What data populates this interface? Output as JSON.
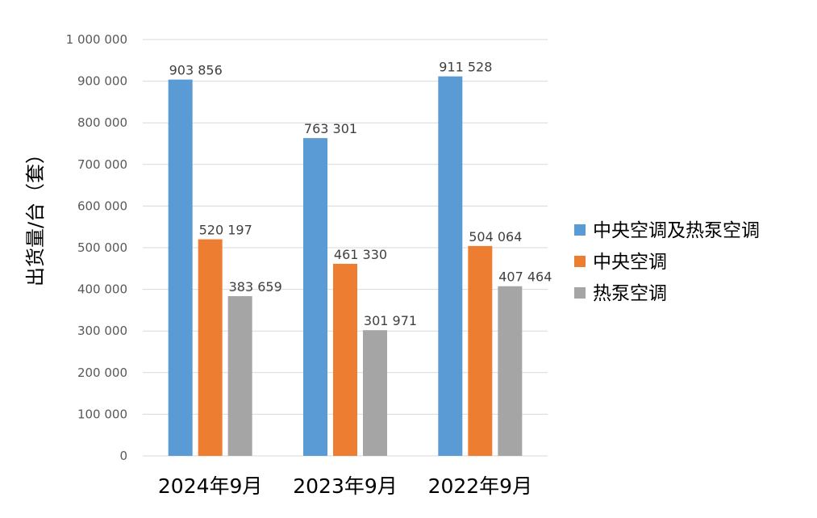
{
  "chart_data": {
    "type": "bar",
    "title": "",
    "xlabel": "",
    "ylabel": "出货量/台（套）",
    "categories": [
      "2024年9月",
      "2023年9月",
      "2022年9月"
    ],
    "series": [
      {
        "name": "中央空调及热泵空调",
        "color": "#5b9bd5",
        "values": [
          903856,
          763301,
          911528
        ]
      },
      {
        "name": "中央空调",
        "color": "#ed7d31",
        "values": [
          520197,
          461330,
          504064
        ]
      },
      {
        "name": "热泵空调",
        "color": "#a5a5a5",
        "values": [
          383659,
          301971,
          407464
        ]
      }
    ],
    "data_labels": [
      [
        "903 856",
        "763 301",
        "911 528"
      ],
      [
        "520 197",
        "461 330",
        "504 064"
      ],
      [
        "383 659",
        "301 971",
        "407 464"
      ]
    ],
    "ylim": [
      0,
      1000000
    ],
    "yticks": [
      0,
      100000,
      200000,
      300000,
      400000,
      500000,
      600000,
      700000,
      800000,
      900000,
      1000000
    ],
    "ytick_labels": [
      "0",
      "100 000",
      "200 000",
      "300 000",
      "400 000",
      "500 000",
      "600 000",
      "700 000",
      "800 000",
      "900 000",
      "1 000 000"
    ],
    "grid": true,
    "legend_position": "right"
  }
}
